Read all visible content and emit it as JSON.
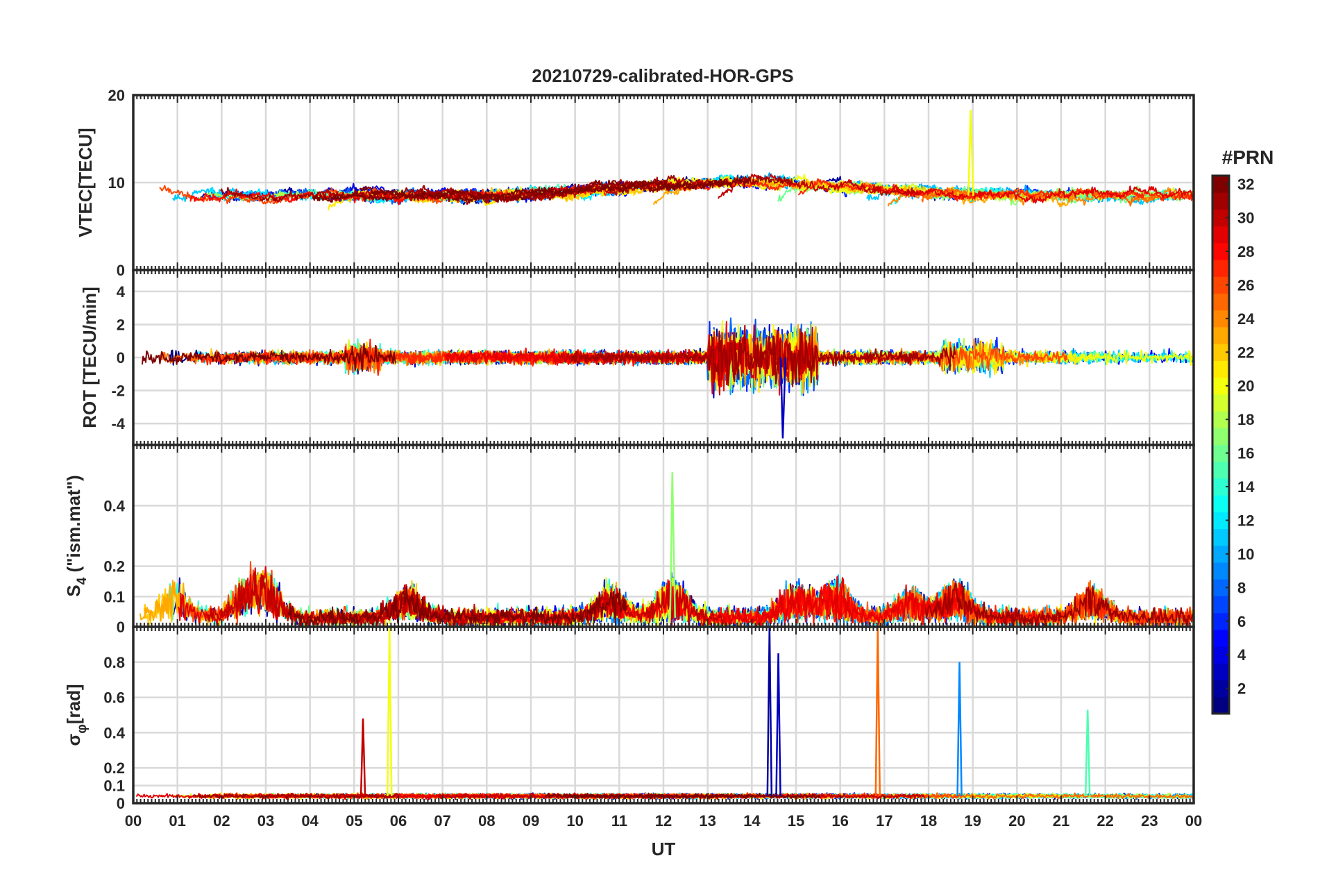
{
  "chart_data": {
    "type": "line",
    "title": "20210729-calibrated-HOR-GPS",
    "xlabel": "UT",
    "xlim": [
      0,
      24
    ],
    "x_ticks": [
      "00",
      "01",
      "02",
      "03",
      "04",
      "05",
      "06",
      "07",
      "08",
      "09",
      "10",
      "11",
      "12",
      "13",
      "14",
      "15",
      "16",
      "17",
      "18",
      "19",
      "20",
      "21",
      "22",
      "23",
      "00"
    ],
    "colorbar": {
      "title": "#PRN",
      "range": [
        1,
        32
      ],
      "ticks": [
        "2",
        "4",
        "6",
        "8",
        "10",
        "12",
        "14",
        "16",
        "18",
        "20",
        "22",
        "24",
        "26",
        "28",
        "30",
        "32"
      ]
    },
    "series_count": 32,
    "panels": [
      {
        "name": "vtec",
        "ylabel": "VTEC[TECU]",
        "ylim": [
          0,
          20
        ],
        "yticks": [
          "0",
          "10",
          "20"
        ],
        "baseline": 8.5,
        "typical_range": [
          5,
          13
        ],
        "peak": {
          "x": 18.95,
          "y": 18.3,
          "prn": 20
        }
      },
      {
        "name": "rot",
        "ylabel": "ROT [TECU/min]",
        "ylim": [
          -5.3,
          5.3
        ],
        "yticks": [
          "4",
          "2",
          "0",
          "-2",
          "-4"
        ],
        "baseline": 0,
        "active_window": [
          13.0,
          15.5
        ],
        "peak": {
          "x": 14.7,
          "y": -4.9,
          "prn": 3
        }
      },
      {
        "name": "s4",
        "ylabel": "S4 (\"ism.mat\")",
        "ylabel_main": "S",
        "ylabel_sub": "4",
        "ylabel_rest": " (\"ism.mat\")",
        "ylim": [
          0,
          0.6
        ],
        "yticks": [
          "0",
          "0.1",
          "0.2",
          "0.4"
        ],
        "baseline": 0.03,
        "peak": {
          "x": 12.2,
          "y": 0.51,
          "prn": 17
        }
      },
      {
        "name": "sigma_phi",
        "ylabel": "σφ[rad]",
        "ylabel_main": "σ",
        "ylabel_sub": "φ",
        "ylabel_rest": "[rad]",
        "ylim": [
          0,
          1.0
        ],
        "yticks": [
          "0",
          "0.1",
          "0.2",
          "0.4",
          "0.6",
          "0.8"
        ],
        "baseline": 0.04,
        "spikes": [
          {
            "x": 5.8,
            "y": 1.0,
            "prn": 20
          },
          {
            "x": 5.2,
            "y": 0.48,
            "prn": 30
          },
          {
            "x": 14.4,
            "y": 1.0,
            "prn": 2
          },
          {
            "x": 14.6,
            "y": 0.85,
            "prn": 3
          },
          {
            "x": 16.85,
            "y": 1.0,
            "prn": 25
          },
          {
            "x": 18.7,
            "y": 0.8,
            "prn": 9
          },
          {
            "x": 21.6,
            "y": 0.53,
            "prn": 15
          }
        ]
      }
    ]
  }
}
